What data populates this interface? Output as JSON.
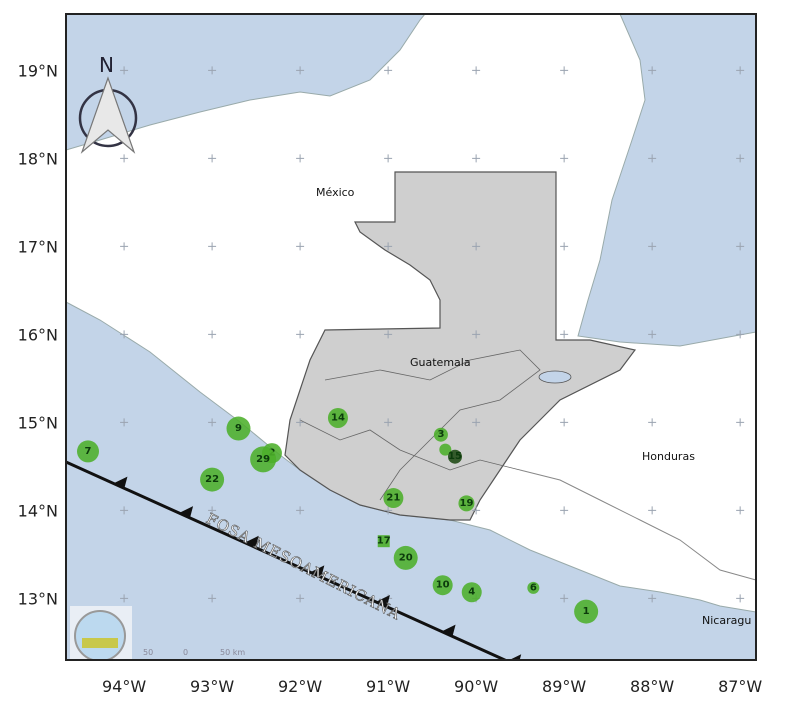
{
  "map": {
    "extent": {
      "lon": [
        -94.66,
        -86.82
      ],
      "lat": [
        12.3,
        19.64
      ]
    },
    "lon_ticks": [
      {
        "value": -94,
        "label": "94°W"
      },
      {
        "value": -93,
        "label": "93°W"
      },
      {
        "value": -92,
        "label": "92°W"
      },
      {
        "value": -91,
        "label": "91°W"
      },
      {
        "value": -90,
        "label": "90°W"
      },
      {
        "value": -89,
        "label": "89°W"
      },
      {
        "value": -88,
        "label": "88°W"
      },
      {
        "value": -87,
        "label": "87°W"
      }
    ],
    "lat_ticks": [
      {
        "value": 19,
        "label": "19°N"
      },
      {
        "value": 18,
        "label": "18°N"
      },
      {
        "value": 17,
        "label": "17°N"
      },
      {
        "value": 16,
        "label": "16°N"
      },
      {
        "value": 15,
        "label": "15°N"
      },
      {
        "value": 14,
        "label": "14°N"
      },
      {
        "value": 13,
        "label": "13°N"
      }
    ],
    "countries": {
      "mexico": "México",
      "guatemala": "Guatemala",
      "honduras": "Honduras",
      "nicaragua": "Nicaragu"
    },
    "trench_label": "FOSA MESOAMERICANA",
    "north_label": "N",
    "scale_bar": {
      "left": "50",
      "mid": "0",
      "right": "50 km"
    },
    "colors": {
      "sea": "#c3d4e8",
      "land": "#ffffff",
      "guatemala": "#cfcfcf",
      "marker": "#4caf2a",
      "marker_dark": "#1f4a14",
      "trench": "#111111"
    },
    "markers": [
      {
        "label": "7",
        "lon": -94.41,
        "lat": 14.67
      },
      {
        "label": "9",
        "lon": -92.7,
        "lat": 14.93
      },
      {
        "label": "22",
        "lon": -93.0,
        "lat": 14.35
      },
      {
        "label": "2",
        "lon": -92.32,
        "lat": 14.65
      },
      {
        "label": "29",
        "lon": -92.42,
        "lat": 14.58
      },
      {
        "label": "14",
        "lon": -91.57,
        "lat": 15.05
      },
      {
        "label": "3",
        "lon": -90.4,
        "lat": 14.86
      },
      {
        "label": "",
        "lon": -90.35,
        "lat": 14.69
      },
      {
        "label": "15",
        "lon": -90.24,
        "lat": 14.61,
        "dark": true
      },
      {
        "label": "21",
        "lon": -90.94,
        "lat": 14.14
      },
      {
        "label": "19",
        "lon": -90.11,
        "lat": 14.08
      },
      {
        "label": "17",
        "lon": -91.05,
        "lat": 13.65,
        "square": true
      },
      {
        "label": "20",
        "lon": -90.8,
        "lat": 13.46
      },
      {
        "label": "10",
        "lon": -90.38,
        "lat": 13.15
      },
      {
        "label": "4",
        "lon": -90.05,
        "lat": 13.07
      },
      {
        "label": "6",
        "lon": -89.35,
        "lat": 13.12
      },
      {
        "label": "1",
        "lon": -88.75,
        "lat": 12.85
      }
    ]
  }
}
